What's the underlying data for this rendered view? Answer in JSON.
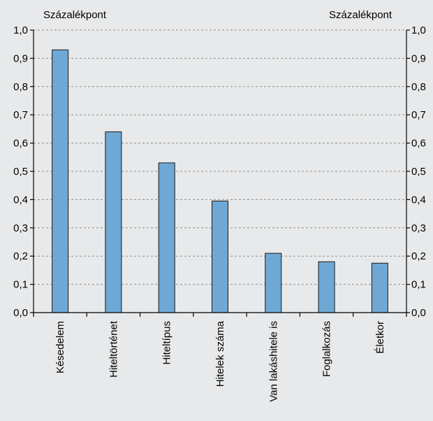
{
  "chart_data": {
    "type": "bar",
    "left_unit_label": "Százalékpont",
    "right_unit_label": "Százalékpont",
    "categories": [
      "Késedelem",
      "Hiteltörténet",
      "Hiteltípus",
      "Hitelek száma",
      "Van lakáshitele is",
      "Foglalkozás",
      "Életkor"
    ],
    "values": [
      0.93,
      0.64,
      0.53,
      0.395,
      0.21,
      0.18,
      0.175
    ],
    "ylim": [
      0,
      1.0
    ],
    "yticks": [
      "0,0",
      "0,1",
      "0,2",
      "0,3",
      "0,4",
      "0,5",
      "0,6",
      "0,7",
      "0,8",
      "0,9",
      "1,0"
    ],
    "grid": true,
    "bar_color": "#6fa8d4"
  }
}
